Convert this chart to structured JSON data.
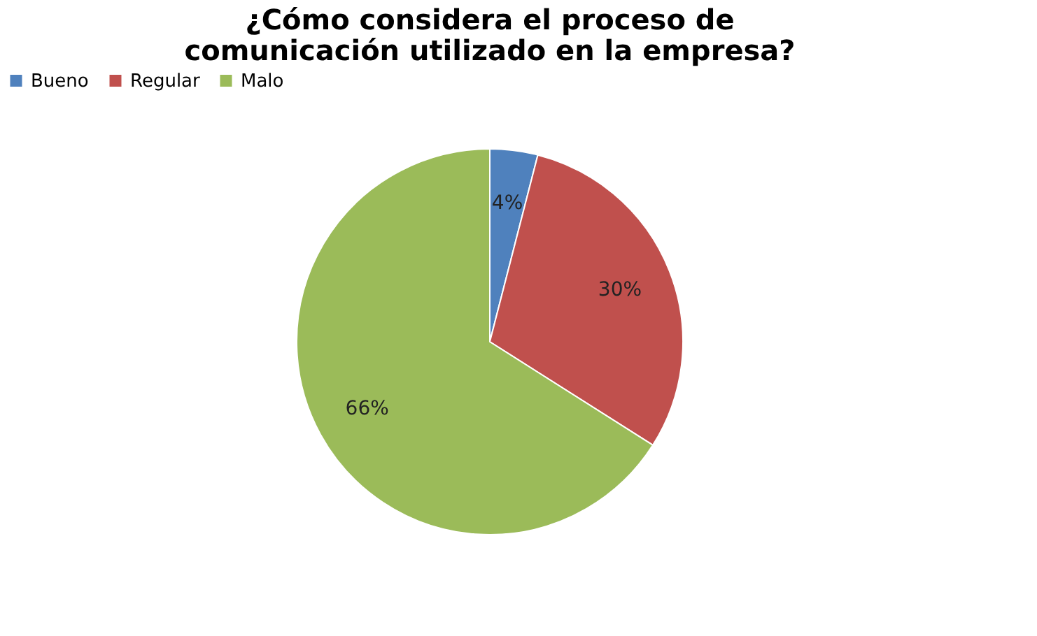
{
  "chart_data": {
    "type": "pie",
    "title": "¿Cómo considera el proceso de comunicación utilizado en la empresa?",
    "categories": [
      "Bueno",
      "Regular",
      "Malo"
    ],
    "values": [
      4,
      30,
      66
    ],
    "colors": [
      "#4f81bd",
      "#c0504d",
      "#9bbb59"
    ],
    "value_labels": [
      "4%",
      "30%",
      "66%"
    ],
    "legend": "top"
  }
}
